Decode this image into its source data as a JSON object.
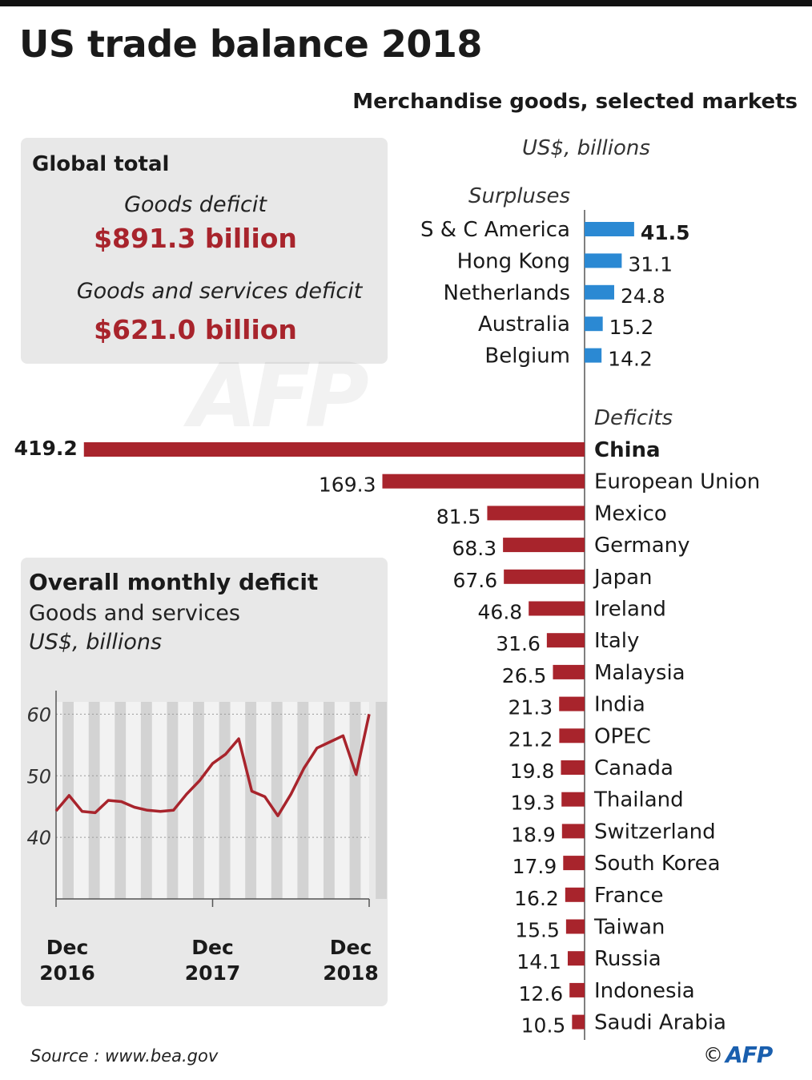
{
  "header": {
    "title": "US trade balance 2018",
    "subtitle": "Merchandise goods, selected markets",
    "unit": "US$, billions"
  },
  "global_total": {
    "heading": "Global total",
    "goods_label": "Goods deficit",
    "goods_value": "$891.3 billion",
    "gs_label": "Goods and services deficit",
    "gs_value": "$621.0 billion"
  },
  "monthly": {
    "heading": "Overall monthly deficit",
    "subheading": "Goods and services",
    "unit": "US$, billions"
  },
  "footer": {
    "source": "Source : www.bea.gov",
    "copyright": "©",
    "logo": "AFP"
  },
  "watermark": "AFP",
  "colors": {
    "surplus": "#2b89d3",
    "deficit": "#a8242c",
    "box": "#e8e8e8"
  },
  "chart_data": [
    {
      "type": "bar",
      "title": "Merchandise goods, selected markets",
      "unit": "US$, billions",
      "surplus_label": "Surpluses",
      "deficit_label": "Deficits",
      "surpluses": [
        {
          "name": "S & C America",
          "value": 41.5,
          "label": "41.5",
          "bold": true
        },
        {
          "name": "Hong Kong",
          "value": 31.1,
          "label": "31.1"
        },
        {
          "name": "Netherlands",
          "value": 24.8,
          "label": "24.8"
        },
        {
          "name": "Australia",
          "value": 15.2,
          "label": "15.2"
        },
        {
          "name": "Belgium",
          "value": 14.2,
          "label": "14.2"
        }
      ],
      "deficits": [
        {
          "name": "China",
          "value": 419.2,
          "label": "419.2",
          "bold": true
        },
        {
          "name": "European Union",
          "value": 169.3,
          "label": "169.3"
        },
        {
          "name": "Mexico",
          "value": 81.5,
          "label": "81.5"
        },
        {
          "name": "Germany",
          "value": 68.3,
          "label": "68.3"
        },
        {
          "name": "Japan",
          "value": 67.6,
          "label": "67.6"
        },
        {
          "name": "Ireland",
          "value": 46.8,
          "label": "46.8"
        },
        {
          "name": "Italy",
          "value": 31.6,
          "label": "31.6"
        },
        {
          "name": "Malaysia",
          "value": 26.5,
          "label": "26.5"
        },
        {
          "name": "India",
          "value": 21.3,
          "label": "21.3"
        },
        {
          "name": "OPEC",
          "value": 21.2,
          "label": "21.2"
        },
        {
          "name": "Canada",
          "value": 19.8,
          "label": "19.8"
        },
        {
          "name": "Thailand",
          "value": 19.3,
          "label": "19.3"
        },
        {
          "name": "Switzerland",
          "value": 18.9,
          "label": "18.9"
        },
        {
          "name": "South Korea",
          "value": 17.9,
          "label": "17.9"
        },
        {
          "name": "France",
          "value": 16.2,
          "label": "16.2"
        },
        {
          "name": "Taiwan",
          "value": 15.5,
          "label": "15.5"
        },
        {
          "name": "Russia",
          "value": 14.1,
          "label": "14.1"
        },
        {
          "name": "Indonesia",
          "value": 12.6,
          "label": "12.6"
        },
        {
          "name": "Saudi Arabia",
          "value": 10.5,
          "label": "10.5"
        }
      ]
    },
    {
      "type": "line",
      "title": "Overall monthly deficit",
      "subtitle": "Goods and services",
      "unit": "US$, billions",
      "x": [
        "Dec 2016",
        "Jan 2017",
        "Feb 2017",
        "Mar 2017",
        "Apr 2017",
        "May 2017",
        "Jun 2017",
        "Jul 2017",
        "Aug 2017",
        "Sep 2017",
        "Oct 2017",
        "Nov 2017",
        "Dec 2017",
        "Jan 2018",
        "Feb 2018",
        "Mar 2018",
        "Apr 2018",
        "May 2018",
        "Jun 2018",
        "Jul 2018",
        "Aug 2018",
        "Sep 2018",
        "Oct 2018",
        "Nov 2018",
        "Dec 2018"
      ],
      "values": [
        44.3,
        46.8,
        44.2,
        44.0,
        46.0,
        45.8,
        44.9,
        44.4,
        44.2,
        44.4,
        47.0,
        49.2,
        52.0,
        53.5,
        56.0,
        47.5,
        46.6,
        43.5,
        47.0,
        51.2,
        54.5,
        55.5,
        56.5,
        50.2,
        60.0
      ],
      "ylim": [
        30,
        62
      ],
      "yticks": [
        "40",
        "50",
        "60"
      ],
      "ytick_values": [
        40,
        50,
        60
      ],
      "xtick_labels": [
        {
          "line1": "Dec",
          "line2": "2016",
          "index": 0
        },
        {
          "line1": "Dec",
          "line2": "2017",
          "index": 12
        },
        {
          "line1": "Dec",
          "line2": "2018",
          "index": 24
        }
      ],
      "grid": true,
      "color": "#a8242c"
    }
  ]
}
